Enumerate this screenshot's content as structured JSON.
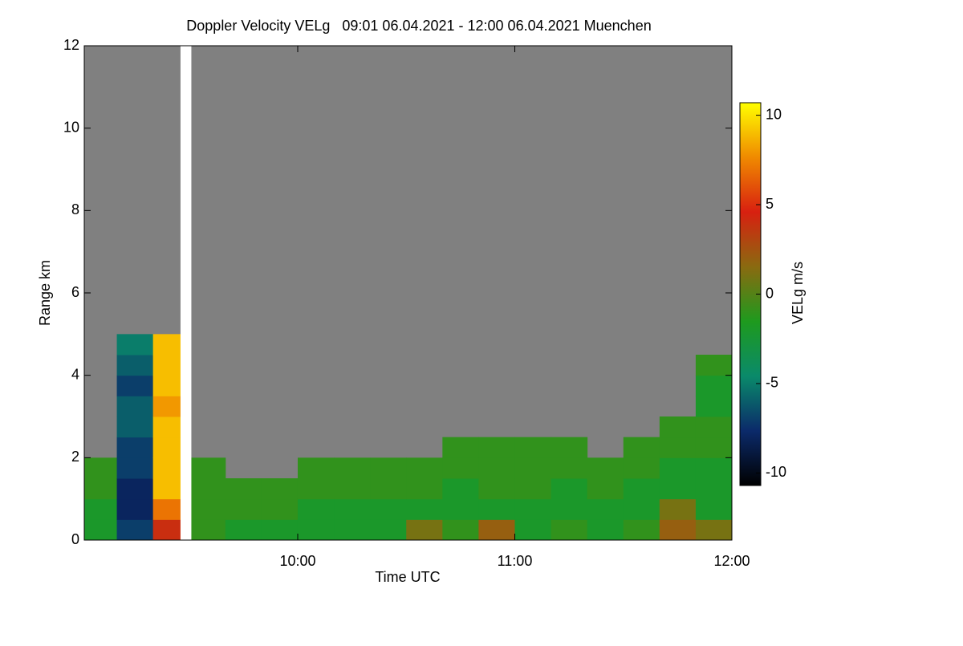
{
  "chart_data": {
    "type": "heatmap",
    "title": "Doppler Velocity VELg   09:01 06.04.2021 - 12:00 06.04.2021 Muenchen",
    "xlabel": "Time UTC",
    "ylabel": "Range km",
    "colorbar_label": "VELg m/s",
    "xlim": [
      9.0167,
      12.0
    ],
    "xticks": [
      {
        "value": 10,
        "label": "10:00"
      },
      {
        "value": 11,
        "label": "11:00"
      },
      {
        "value": 12,
        "label": "12:00"
      }
    ],
    "ylim": [
      0,
      12
    ],
    "yticks": [
      0,
      2,
      4,
      6,
      8,
      10,
      12
    ],
    "x_edges": [
      9.0167,
      9.1667,
      9.3333,
      9.5,
      9.6667,
      9.8333,
      10.0,
      10.1667,
      10.3333,
      10.5,
      10.6667,
      10.8333,
      11.0,
      11.1667,
      11.3333,
      11.5,
      11.6667,
      11.8333,
      12.0
    ],
    "y_edges": [
      0,
      0.5,
      1,
      1.5,
      2,
      2.5,
      3,
      3.5,
      4,
      4.5,
      5
    ],
    "z": [
      [
        -2,
        -2,
        -1,
        -1,
        null,
        null,
        null,
        null,
        null,
        null
      ],
      [
        -7,
        -8,
        -8,
        -7,
        -7,
        -6,
        -6,
        -7,
        -6,
        -5
      ],
      [
        4,
        7,
        9,
        9,
        9,
        9,
        8,
        9,
        9,
        9
      ],
      [
        -1,
        -1,
        -1,
        -1,
        null,
        null,
        null,
        null,
        null,
        null
      ],
      [
        -2,
        -1,
        -1,
        null,
        null,
        null,
        null,
        null,
        null,
        null
      ],
      [
        -2,
        -1,
        -1,
        null,
        null,
        null,
        null,
        null,
        null,
        null
      ],
      [
        -2,
        -2,
        -1,
        -1,
        null,
        null,
        null,
        null,
        null,
        null
      ],
      [
        -2,
        -2,
        -1,
        -1,
        null,
        null,
        null,
        null,
        null,
        null
      ],
      [
        -2,
        -2,
        -1,
        -1,
        null,
        null,
        null,
        null,
        null,
        null
      ],
      [
        1,
        -2,
        -1,
        -1,
        null,
        null,
        null,
        null,
        null,
        null
      ],
      [
        -1,
        -2,
        -2,
        -1,
        -1,
        null,
        null,
        null,
        null,
        null
      ],
      [
        2,
        -2,
        -1,
        -1,
        -1,
        null,
        null,
        null,
        null,
        null
      ],
      [
        -2,
        -2,
        -1,
        -1,
        -1,
        null,
        null,
        null,
        null,
        null
      ],
      [
        -1,
        -2,
        -2,
        -1,
        -1,
        null,
        null,
        null,
        null,
        null
      ],
      [
        -2,
        -2,
        -1,
        -1,
        null,
        null,
        null,
        null,
        null,
        null
      ],
      [
        -1,
        -2,
        -2,
        -1,
        -1,
        null,
        null,
        null,
        null,
        null
      ],
      [
        2,
        1,
        -2,
        -2,
        -1,
        -1,
        null,
        null,
        null,
        null
      ],
      [
        1,
        -2,
        -2,
        -2,
        -1,
        -1,
        -2,
        -2,
        -1,
        null
      ]
    ],
    "gap_x": [
      9.46,
      9.51
    ],
    "clim": [
      -10.7,
      10.7
    ],
    "cticks": [
      -10,
      -5,
      0,
      5,
      10
    ],
    "colormap": [
      "#000000",
      "#0b2a6a",
      "#0a8a6a",
      "#1e9a1e",
      "#8a6a10",
      "#d82010",
      "#f08a00",
      "#ffff00"
    ],
    "background": "#808080",
    "gap_color": "#ffffff"
  }
}
